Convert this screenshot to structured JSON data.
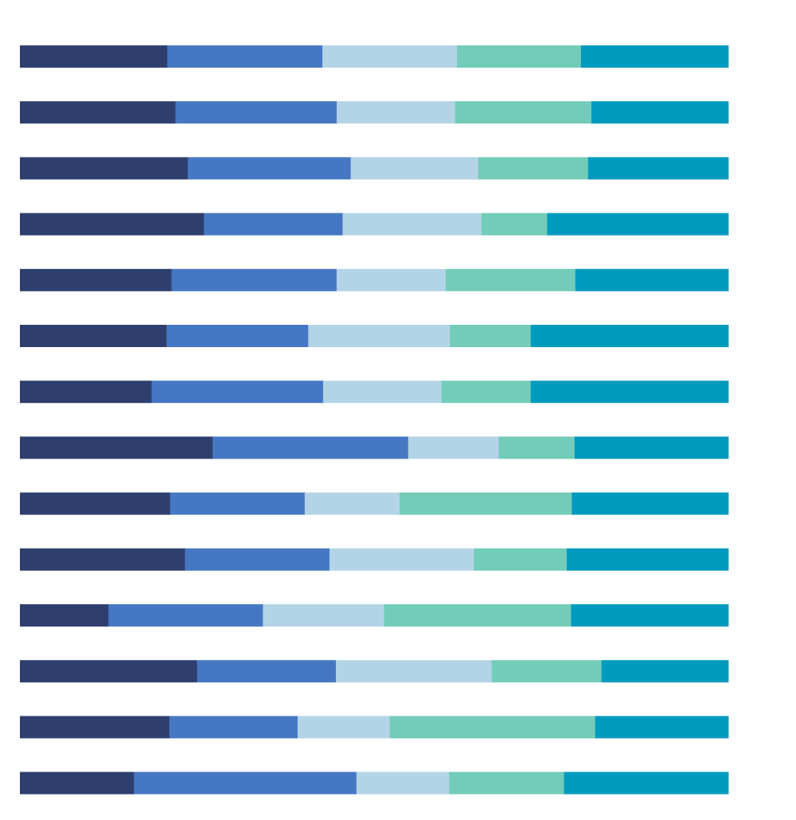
{
  "chart_data": {
    "type": "bar",
    "orientation": "horizontal",
    "stacked": true,
    "normalized": true,
    "title": "",
    "xlabel": "",
    "ylabel": "",
    "xlim": [
      0,
      100
    ],
    "grid": false,
    "legend": "none",
    "colors": [
      "#2e3f6e",
      "#4677c3",
      "#b3d4e6",
      "#72ccb9",
      "#009abf"
    ],
    "series": [
      {
        "values": [
          20.8,
          21.8,
          23.7,
          26.0,
          21.4,
          20.7,
          18.6,
          27.2,
          21.2,
          23.3,
          12.5,
          25.0,
          21.1,
          16.1
        ]
      },
      {
        "values": [
          21.9,
          22.6,
          23.0,
          19.6,
          23.3,
          20.0,
          24.2,
          27.6,
          19.0,
          20.4,
          21.8,
          19.6,
          18.1,
          31.4
        ]
      },
      {
        "values": [
          19.0,
          16.6,
          18.0,
          19.6,
          15.4,
          20.0,
          16.7,
          12.8,
          13.4,
          20.4,
          17.1,
          22.0,
          13.0,
          13.1
        ]
      },
      {
        "values": [
          17.5,
          19.1,
          15.5,
          9.3,
          18.3,
          11.4,
          12.6,
          10.7,
          24.3,
          13.1,
          26.4,
          15.5,
          29.0,
          16.2
        ]
      },
      {
        "values": [
          20.8,
          19.2,
          19.8,
          25.6,
          21.6,
          27.9,
          27.9,
          21.7,
          22.1,
          22.8,
          22.2,
          17.9,
          18.8,
          23.2
        ]
      }
    ]
  }
}
